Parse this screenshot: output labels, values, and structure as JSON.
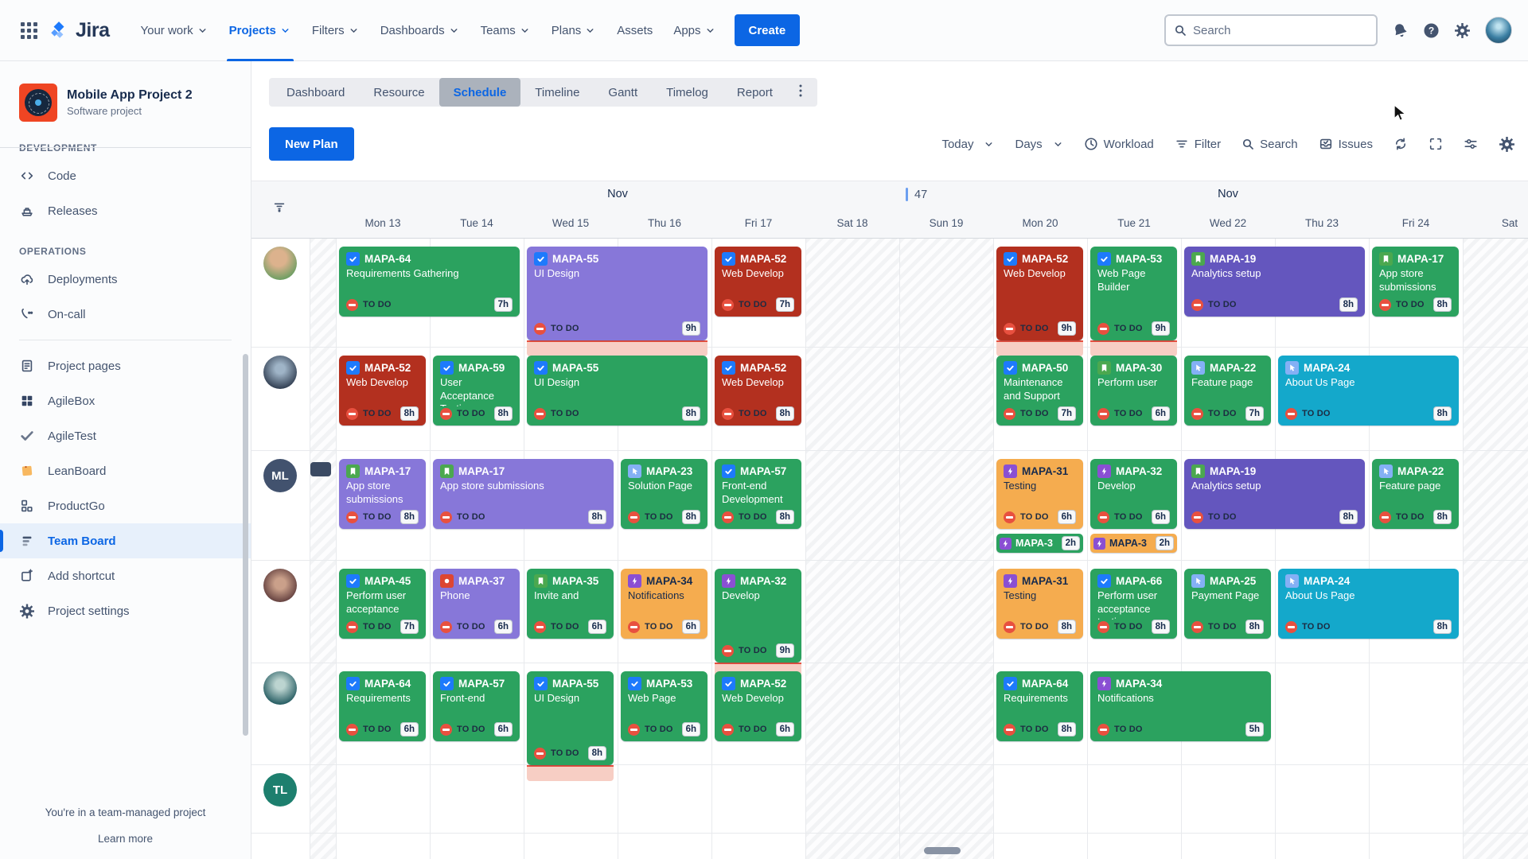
{
  "topnav": {
    "logo_text": "Jira",
    "items": [
      {
        "label": "Your work",
        "chevron": true,
        "active": false
      },
      {
        "label": "Projects",
        "chevron": true,
        "active": true
      },
      {
        "label": "Filters",
        "chevron": true,
        "active": false
      },
      {
        "label": "Dashboards",
        "chevron": true,
        "active": false
      },
      {
        "label": "Teams",
        "chevron": true,
        "active": false
      },
      {
        "label": "Plans",
        "chevron": true,
        "active": false
      },
      {
        "label": "Assets",
        "chevron": false,
        "active": false
      },
      {
        "label": "Apps",
        "chevron": true,
        "active": false
      }
    ],
    "create_label": "Create",
    "search_placeholder": "Search"
  },
  "sidebar": {
    "project_name": "Mobile App Project 2",
    "project_type": "Software project",
    "section_development": "DEVELOPMENT",
    "section_operations": "OPERATIONS",
    "groups": [
      {
        "items": [
          {
            "label": "Code",
            "icon": "code-icon"
          },
          {
            "label": "Releases",
            "icon": "ship-icon"
          }
        ]
      },
      {
        "section": "OPERATIONS",
        "items": [
          {
            "label": "Deployments",
            "icon": "cloud-upload-icon"
          },
          {
            "label": "On-call",
            "icon": "phone-icon"
          }
        ]
      },
      {
        "divider": true,
        "items": [
          {
            "label": "Project pages",
            "icon": "document-icon"
          },
          {
            "label": "AgileBox",
            "icon": "agilebox-icon"
          },
          {
            "label": "AgileTest",
            "icon": "agiletest-check-icon"
          },
          {
            "label": "LeanBoard",
            "icon": "leanboard-note-icon"
          },
          {
            "label": "ProductGo",
            "icon": "productgo-icon"
          },
          {
            "label": "Team Board",
            "icon": "team-board-icon",
            "selected": true
          },
          {
            "label": "Add shortcut",
            "icon": "add-shortcut-icon"
          },
          {
            "label": "Project settings",
            "icon": "gear-icon"
          }
        ]
      }
    ],
    "footer_line1": "You're in a team-managed project",
    "footer_line2": "Learn more"
  },
  "tabs": {
    "items": [
      "Dashboard",
      "Resource",
      "Schedule",
      "Timeline",
      "Gantt",
      "Timelog",
      "Report"
    ],
    "active": "Schedule",
    "kebab": "⋮"
  },
  "toolbar": {
    "new_plan_label": "New Plan",
    "items": [
      {
        "label": "Today",
        "chevron": true
      },
      {
        "label": "Days",
        "chevron": true
      },
      {
        "label": "Workload",
        "icon": "clock-icon"
      },
      {
        "label": "Filter",
        "icon": "filter-lines-icon"
      },
      {
        "label": "Search",
        "icon": "magnifier-icon"
      },
      {
        "label": "Issues",
        "icon": "issues-tray-icon"
      }
    ],
    "icon_buttons": [
      "sync-icon",
      "fullscreen-icon",
      "sliders-icon",
      "gear-icon"
    ]
  },
  "calendar": {
    "month_first": "Nov",
    "month_second": "Nov",
    "week_number": "47",
    "days": [
      {
        "label": "Mon 13",
        "weekend": false
      },
      {
        "label": "Tue 14",
        "weekend": false
      },
      {
        "label": "Wed 15",
        "weekend": false
      },
      {
        "label": "Thu 16",
        "weekend": false
      },
      {
        "label": "Fri 17",
        "weekend": false
      },
      {
        "label": "Sat 18",
        "weekend": true
      },
      {
        "label": "Sun 19",
        "weekend": true
      },
      {
        "label": "Mon 20",
        "weekend": false
      },
      {
        "label": "Tue 21",
        "weekend": false
      },
      {
        "label": "Wed 22",
        "weekend": false
      },
      {
        "label": "Thu 23",
        "weekend": false
      },
      {
        "label": "Fri 24",
        "weekend": false
      },
      {
        "label": "Sat",
        "weekend": true
      }
    ],
    "rows": [
      {
        "avatar": {
          "type": "photo",
          "variant": "p1"
        },
        "cards": [
          {
            "col": 0,
            "span": 2,
            "color": "green",
            "icon": "task",
            "key": "MAPA-64",
            "summary": "Requirements Gathering",
            "status": "TO DO",
            "hours": "7h",
            "overflow": false
          },
          {
            "col": 2,
            "span": 2,
            "color": "purple",
            "icon": "task",
            "key": "MAPA-55",
            "summary": "UI Design",
            "status": "TO DO",
            "hours": "9h",
            "overflow": true
          },
          {
            "col": 4,
            "span": 1,
            "color": "darkred",
            "icon": "task",
            "key": "MAPA-52",
            "summary": "Web Develop",
            "status": "TO DO",
            "hours": "7h",
            "overflow": false
          },
          {
            "col": 7,
            "span": 1,
            "color": "darkred",
            "icon": "task",
            "key": "MAPA-52",
            "summary": "Web Develop",
            "status": "TO DO",
            "hours": "9h",
            "overflow": true
          },
          {
            "col": 8,
            "span": 1,
            "color": "green",
            "icon": "task",
            "key": "MAPA-53",
            "summary": "Web Page Builder",
            "status": "TO DO",
            "hours": "9h",
            "overflow": true
          },
          {
            "col": 9,
            "span": 2,
            "color": "indigo",
            "icon": "story",
            "key": "MAPA-19",
            "summary": "Analytics setup",
            "status": "TO DO",
            "hours": "8h",
            "overflow": false
          },
          {
            "col": 11,
            "span": 1,
            "color": "green",
            "icon": "story",
            "key": "MAPA-17",
            "summary": "App store submissions",
            "status": "TO DO",
            "hours": "8h",
            "overflow": false
          }
        ]
      },
      {
        "avatar": {
          "type": "photo",
          "variant": "p2"
        },
        "cards": [
          {
            "col": 0,
            "span": 1,
            "color": "darkred",
            "icon": "task",
            "key": "MAPA-52",
            "summary": "Web Develop",
            "status": "TO DO",
            "hours": "8h",
            "overflow": false
          },
          {
            "col": 1,
            "span": 1,
            "color": "green",
            "icon": "task",
            "key": "MAPA-59",
            "summary": "User Acceptance Testing",
            "status": "TO DO",
            "hours": "8h",
            "overflow": false
          },
          {
            "col": 2,
            "span": 2,
            "color": "green",
            "icon": "task",
            "key": "MAPA-55",
            "summary": "UI Design",
            "status": "TO DO",
            "hours": "8h",
            "overflow": false
          },
          {
            "col": 4,
            "span": 1,
            "color": "darkred",
            "icon": "task",
            "key": "MAPA-52",
            "summary": "Web Develop",
            "status": "TO DO",
            "hours": "8h",
            "overflow": false
          },
          {
            "col": 7,
            "span": 1,
            "color": "green",
            "icon": "task",
            "key": "MAPA-50",
            "summary": "Maintenance and Support",
            "status": "TO DO",
            "hours": "7h",
            "overflow": false
          },
          {
            "col": 8,
            "span": 1,
            "color": "green",
            "icon": "story",
            "key": "MAPA-30",
            "summary": "Perform user",
            "status": "TO DO",
            "hours": "6h",
            "overflow": false
          },
          {
            "col": 9,
            "span": 1,
            "color": "green",
            "icon": "feature",
            "key": "MAPA-22",
            "summary": "Feature page",
            "status": "TO DO",
            "hours": "7h",
            "overflow": false
          },
          {
            "col": 10,
            "span": 2,
            "color": "cyan",
            "icon": "feature",
            "key": "MAPA-24",
            "summary": "About Us Page",
            "status": "TO DO",
            "hours": "8h",
            "overflow": false
          }
        ]
      },
      {
        "avatar": {
          "type": "initials",
          "text": "ML",
          "color": "#42526E"
        },
        "has_side_bar": true,
        "cards": [
          {
            "col": 0,
            "span": 1,
            "color": "purple",
            "icon": "story",
            "key": "MAPA-17",
            "summary": "App store submissions",
            "status": "TO DO",
            "hours": "8h",
            "overflow": false
          },
          {
            "col": 1,
            "span": 2,
            "color": "purple",
            "icon": "story",
            "key": "MAPA-17",
            "summary": "App store submissions",
            "status": "TO DO",
            "hours": "8h",
            "overflow": false
          },
          {
            "col": 3,
            "span": 1,
            "color": "green",
            "icon": "feature",
            "key": "MAPA-23",
            "summary": "Solution Page",
            "status": "TO DO",
            "hours": "8h",
            "overflow": false
          },
          {
            "col": 4,
            "span": 1,
            "color": "green",
            "icon": "task",
            "key": "MAPA-57",
            "summary": "Front-end Development",
            "status": "TO DO",
            "hours": "8h",
            "overflow": false
          },
          {
            "col": 7,
            "span": 1,
            "color": "orange",
            "icon": "subtask",
            "key": "MAPA-31",
            "summary": "Testing",
            "status": "TO DO",
            "hours": "6h",
            "overflow": false,
            "chip": {
              "color": "green",
              "icon": "subtask",
              "key": "MAPA-3",
              "hours": "2h"
            }
          },
          {
            "col": 8,
            "span": 1,
            "color": "green",
            "icon": "subtask",
            "key": "MAPA-32",
            "summary": "Develop",
            "status": "TO DO",
            "hours": "6h",
            "overflow": false,
            "chip": {
              "color": "orange",
              "icon": "subtask",
              "key": "MAPA-3",
              "hours": "2h"
            }
          },
          {
            "col": 9,
            "span": 2,
            "color": "indigo",
            "icon": "story",
            "key": "MAPA-19",
            "summary": "Analytics setup",
            "status": "TO DO",
            "hours": "8h",
            "overflow": false
          },
          {
            "col": 11,
            "span": 1,
            "color": "green",
            "icon": "feature",
            "key": "MAPA-22",
            "summary": "Feature page",
            "status": "TO DO",
            "hours": "8h",
            "overflow": false
          }
        ]
      },
      {
        "avatar": {
          "type": "photo",
          "variant": "p3"
        },
        "cards": [
          {
            "col": 0,
            "span": 1,
            "color": "green",
            "icon": "task",
            "key": "MAPA-45",
            "summary": "Perform user acceptance",
            "status": "TO DO",
            "hours": "7h",
            "overflow": false
          },
          {
            "col": 1,
            "span": 1,
            "color": "purple",
            "icon": "bug",
            "key": "MAPA-37",
            "summary": "Phone",
            "status": "TO DO",
            "hours": "6h",
            "overflow": false
          },
          {
            "col": 2,
            "span": 1,
            "color": "green",
            "icon": "story",
            "key": "MAPA-35",
            "summary": "Invite and",
            "status": "TO DO",
            "hours": "6h",
            "overflow": false
          },
          {
            "col": 3,
            "span": 1,
            "color": "orange",
            "icon": "subtask",
            "key": "MAPA-34",
            "summary": "Notifications",
            "status": "TO DO",
            "hours": "6h",
            "overflow": false
          },
          {
            "col": 4,
            "span": 1,
            "color": "green",
            "icon": "subtask",
            "key": "MAPA-32",
            "summary": "Develop",
            "status": "TO DO",
            "hours": "9h",
            "overflow": true
          },
          {
            "col": 7,
            "span": 1,
            "color": "orange",
            "icon": "subtask",
            "key": "MAPA-31",
            "summary": "Testing",
            "status": "TO DO",
            "hours": "8h",
            "overflow": false
          },
          {
            "col": 8,
            "span": 1,
            "color": "green",
            "icon": "task",
            "key": "MAPA-66",
            "summary": "Perform user acceptance testing",
            "status": "TO DO",
            "hours": "8h",
            "overflow": false
          },
          {
            "col": 9,
            "span": 1,
            "color": "green",
            "icon": "feature",
            "key": "MAPA-25",
            "summary": "Payment Page",
            "status": "TO DO",
            "hours": "8h",
            "overflow": false
          },
          {
            "col": 10,
            "span": 2,
            "color": "cyan",
            "icon": "feature",
            "key": "MAPA-24",
            "summary": "About Us Page",
            "status": "TO DO",
            "hours": "8h",
            "overflow": false
          }
        ]
      },
      {
        "avatar": {
          "type": "photo",
          "variant": "p4"
        },
        "cards": [
          {
            "col": 0,
            "span": 1,
            "color": "green",
            "icon": "task",
            "key": "MAPA-64",
            "summary": "Requirements",
            "status": "TO DO",
            "hours": "6h",
            "overflow": false
          },
          {
            "col": 1,
            "span": 1,
            "color": "green",
            "icon": "task",
            "key": "MAPA-57",
            "summary": "Front-end",
            "status": "TO DO",
            "hours": "6h",
            "overflow": false
          },
          {
            "col": 2,
            "span": 1,
            "color": "green",
            "icon": "task",
            "key": "MAPA-55",
            "summary": "UI Design",
            "status": "TO DO",
            "hours": "8h",
            "overflow": true
          },
          {
            "col": 3,
            "span": 1,
            "color": "green",
            "icon": "task",
            "key": "MAPA-53",
            "summary": "Web Page",
            "status": "TO DO",
            "hours": "6h",
            "overflow": false
          },
          {
            "col": 4,
            "span": 1,
            "color": "green",
            "icon": "task",
            "key": "MAPA-52",
            "summary": "Web Develop",
            "status": "TO DO",
            "hours": "6h",
            "overflow": false
          },
          {
            "col": 7,
            "span": 1,
            "color": "green",
            "icon": "task",
            "key": "MAPA-64",
            "summary": "Requirements",
            "status": "TO DO",
            "hours": "8h",
            "overflow": false
          },
          {
            "col": 8,
            "span": 2,
            "color": "green",
            "icon": "subtask",
            "key": "MAPA-34",
            "summary": "Notifications",
            "status": "TO DO",
            "hours": "5h",
            "overflow": false
          }
        ]
      },
      {
        "avatar": {
          "type": "initials",
          "text": "TL",
          "color": "#1D7F6E"
        },
        "cards": []
      }
    ]
  },
  "colors": {
    "accent_blue": "#0C66E4",
    "card_green": "#2BA25F",
    "card_darkred": "#B3301F",
    "card_purple": "#8777D9",
    "card_indigo": "#6456BE",
    "card_orange": "#F5AC4F",
    "card_cyan": "#14A8CB",
    "status_todo_red": "#E8503F",
    "type_task": "#1D7AFC",
    "type_story": "#4BA84F",
    "type_subtask": "#8A4FD3",
    "type_bug": "#DD4632",
    "type_feature": "#84B0F5"
  }
}
